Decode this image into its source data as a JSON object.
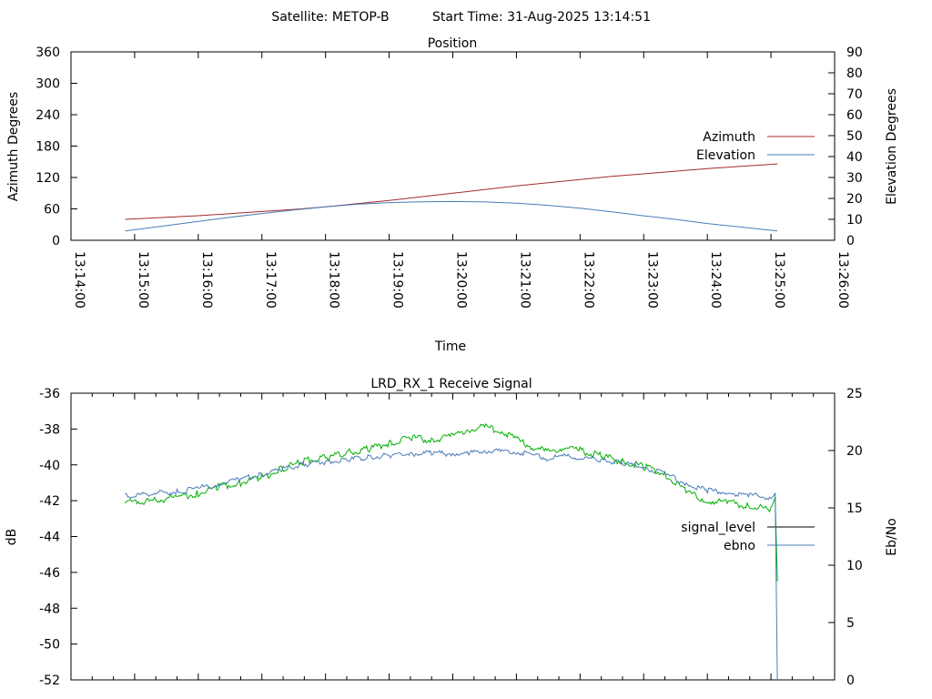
{
  "header": {
    "satellite_text": "Satellite: METOP-B",
    "start_time_text": "Start Time: 31-Aug-2025 13:14:51"
  },
  "chart_data": [
    {
      "type": "line",
      "title": "Position",
      "xlabel": "Time",
      "ylabel": "Azimuth Degrees",
      "y2label": "Elevation Degrees",
      "xlim": [
        "13:14:00",
        "13:26:00"
      ],
      "xticks": [
        "13:14:00",
        "13:15:00",
        "13:16:00",
        "13:17:00",
        "13:18:00",
        "13:19:00",
        "13:20:00",
        "13:21:00",
        "13:22:00",
        "13:23:00",
        "13:24:00",
        "13:25:00",
        "13:26:00"
      ],
      "ylim": [
        0,
        360
      ],
      "yticks": [
        0,
        60,
        120,
        180,
        240,
        300,
        360
      ],
      "y2lim": [
        0,
        90
      ],
      "y2ticks": [
        0,
        10,
        20,
        30,
        40,
        50,
        60,
        70,
        80,
        90
      ],
      "grid": false,
      "legend_position": "right",
      "series": [
        {
          "name": "Azimuth",
          "axis": "left",
          "color": "#a52a2a",
          "x": [
            "13:14:51",
            "13:15:30",
            "13:16:00",
            "13:16:30",
            "13:17:00",
            "13:17:30",
            "13:18:00",
            "13:18:30",
            "13:19:00",
            "13:19:30",
            "13:20:00",
            "13:20:30",
            "13:21:00",
            "13:21:30",
            "13:22:00",
            "13:22:30",
            "13:23:00",
            "13:23:30",
            "13:24:00",
            "13:24:30",
            "13:25:06"
          ],
          "values": [
            40,
            44,
            47,
            51,
            55,
            59,
            64,
            70,
            76,
            83,
            90,
            97,
            104,
            110,
            116,
            122,
            127,
            132,
            137,
            141,
            146
          ]
        },
        {
          "name": "Elevation",
          "axis": "right",
          "color": "#4a7bb7",
          "x": [
            "13:14:51",
            "13:15:30",
            "13:16:00",
            "13:16:30",
            "13:17:00",
            "13:17:30",
            "13:18:00",
            "13:18:30",
            "13:19:00",
            "13:19:30",
            "13:20:00",
            "13:20:30",
            "13:21:00",
            "13:21:30",
            "13:22:00",
            "13:22:30",
            "13:23:00",
            "13:23:30",
            "13:24:00",
            "13:24:30",
            "13:25:06"
          ],
          "values": [
            4.5,
            7,
            9,
            11,
            12.8,
            14.5,
            16,
            17.2,
            18,
            18.4,
            18.5,
            18.3,
            17.7,
            16.7,
            15.3,
            13.6,
            11.7,
            10,
            8,
            6.4,
            4.5
          ]
        }
      ]
    },
    {
      "type": "line",
      "title": "LRD_RX_1 Receive Signal",
      "xlabel": "",
      "ylabel": "dB",
      "y2label": "Eb/No",
      "xlim": [
        "13:14:00",
        "13:26:00"
      ],
      "ylim": [
        -52,
        -36
      ],
      "yticks": [
        -52,
        -50,
        -48,
        -46,
        -44,
        -42,
        -40,
        -38,
        -36
      ],
      "y2lim": [
        0,
        25
      ],
      "y2ticks": [
        0,
        5,
        10,
        15,
        20,
        25
      ],
      "grid": false,
      "legend_position": "right",
      "series": [
        {
          "name": "signal_level",
          "axis": "left",
          "color": "#00b000",
          "legend_color": "#000000",
          "x": [
            "13:14:51",
            "13:15:20",
            "13:15:40",
            "13:16:00",
            "13:16:20",
            "13:16:40",
            "13:17:00",
            "13:17:20",
            "13:17:40",
            "13:18:00",
            "13:18:20",
            "13:18:40",
            "13:19:00",
            "13:19:20",
            "13:19:40",
            "13:20:00",
            "13:20:15",
            "13:20:30",
            "13:20:45",
            "13:21:00",
            "13:21:15",
            "13:21:30",
            "13:21:45",
            "13:22:00",
            "13:22:20",
            "13:22:40",
            "13:23:00",
            "13:23:20",
            "13:23:40",
            "13:24:00",
            "13:24:20",
            "13:24:40",
            "13:25:00",
            "13:25:04",
            "13:25:06"
          ],
          "values": [
            -42.1,
            -42.0,
            -41.8,
            -41.6,
            -41.2,
            -41.0,
            -40.7,
            -40.2,
            -39.8,
            -39.6,
            -39.3,
            -39.1,
            -38.8,
            -38.5,
            -38.6,
            -38.4,
            -38.0,
            -37.9,
            -38.1,
            -38.6,
            -39.0,
            -39.3,
            -39.0,
            -39.2,
            -39.5,
            -39.8,
            -40.1,
            -40.5,
            -41.5,
            -42.0,
            -42.1,
            -42.3,
            -42.5,
            -41.8,
            -46.5
          ]
        },
        {
          "name": "ebno",
          "axis": "right",
          "color": "#4a7bb7",
          "x": [
            "13:14:51",
            "13:15:20",
            "13:15:40",
            "13:16:00",
            "13:16:20",
            "13:16:40",
            "13:17:00",
            "13:17:20",
            "13:17:40",
            "13:18:00",
            "13:18:20",
            "13:18:40",
            "13:19:00",
            "13:19:20",
            "13:19:40",
            "13:20:00",
            "13:20:15",
            "13:20:30",
            "13:20:45",
            "13:21:00",
            "13:21:15",
            "13:21:30",
            "13:21:45",
            "13:22:00",
            "13:22:20",
            "13:22:40",
            "13:23:00",
            "13:23:20",
            "13:23:40",
            "13:24:00",
            "13:24:20",
            "13:24:40",
            "13:25:00",
            "13:25:04",
            "13:25:06"
          ],
          "values": [
            16.0,
            16.3,
            16.4,
            16.7,
            17.1,
            17.5,
            17.9,
            18.4,
            18.8,
            19.0,
            19.2,
            19.4,
            19.6,
            19.7,
            19.8,
            19.7,
            19.8,
            20.0,
            19.9,
            19.9,
            19.6,
            19.3,
            19.5,
            19.4,
            19.2,
            18.9,
            18.5,
            18.0,
            17.1,
            16.5,
            16.3,
            16.1,
            15.9,
            16.3,
            0
          ]
        }
      ]
    }
  ]
}
